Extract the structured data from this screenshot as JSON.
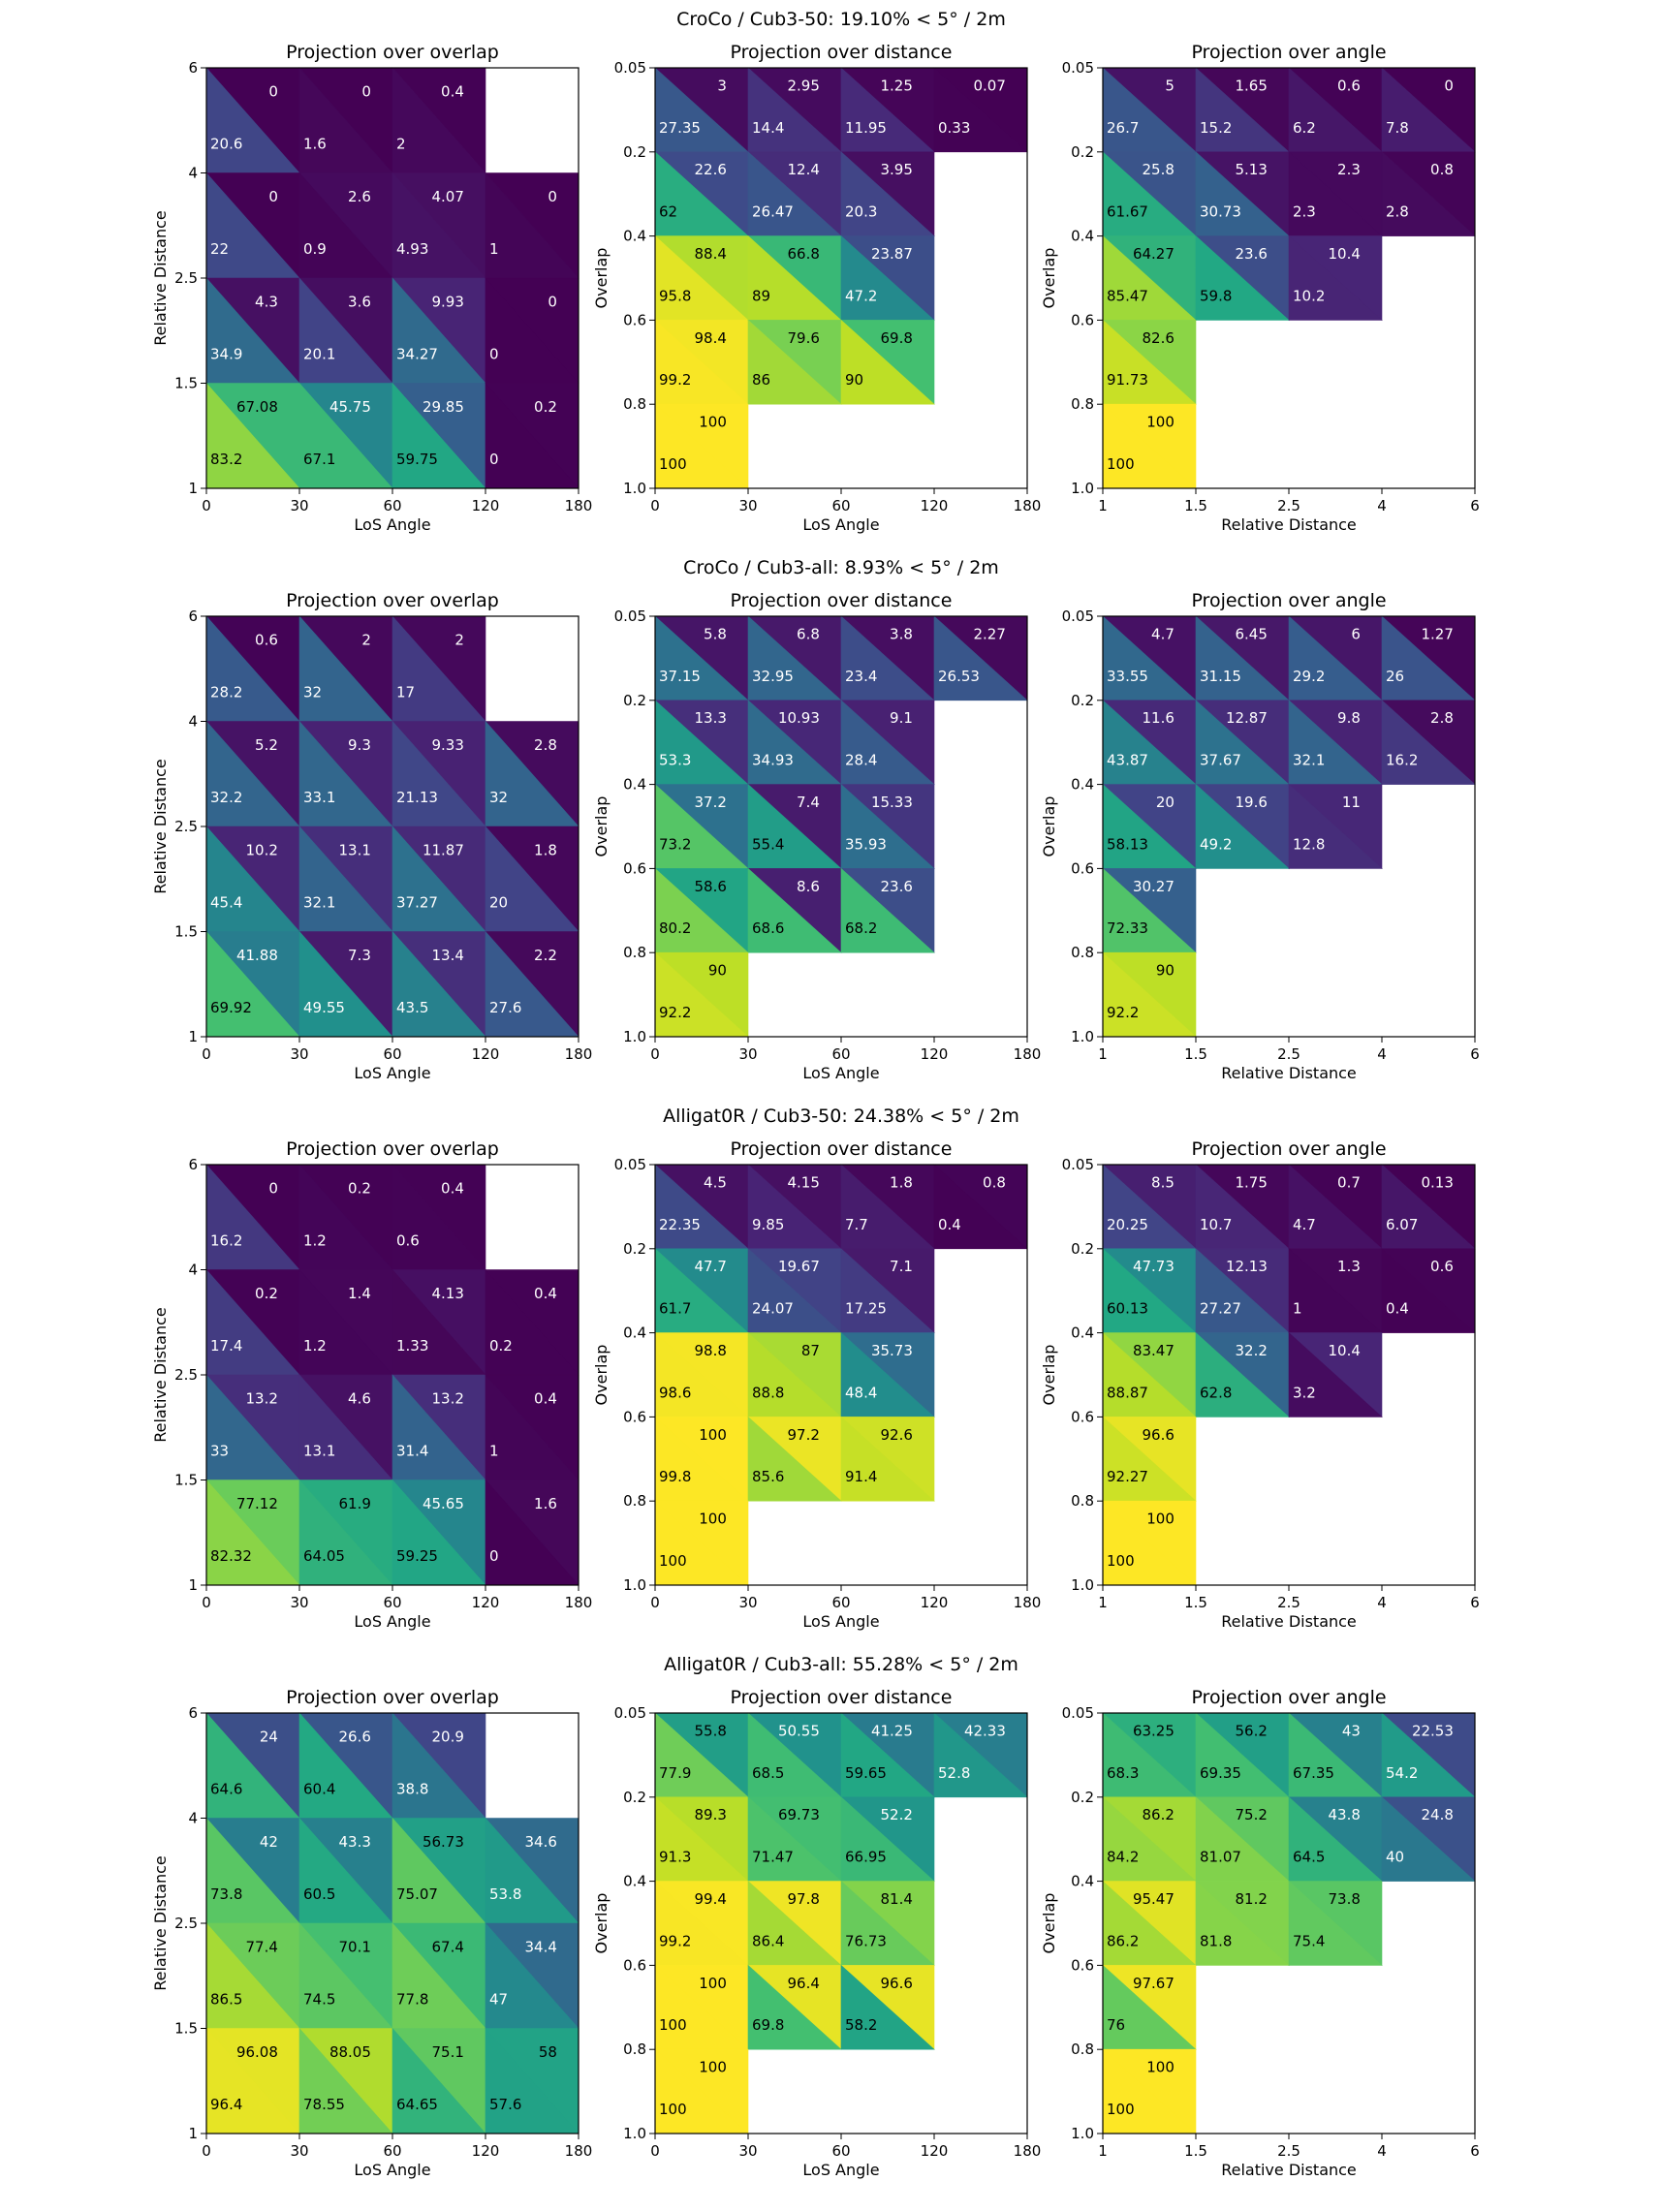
{
  "figure": {
    "panel_titles": [
      "Projection over overlap",
      "Projection over distance",
      "Projection over angle"
    ]
  },
  "axes": {
    "angle_ticks": [
      "0",
      "30",
      "60",
      "120",
      "180"
    ],
    "distance_ticks": [
      "1",
      "1.5",
      "2.5",
      "4",
      "6"
    ],
    "overlap_ticks": [
      "0.05",
      "0.2",
      "0.4",
      "0.6",
      "0.8",
      "1.0"
    ],
    "angle_label": "LoS Angle",
    "distance_label": "Relative Distance",
    "overlap_label": "Overlap"
  },
  "chart_data": [
    {
      "type": "heatmap",
      "title": "CroCo / Cub3-50: 19.10% < 5° / 2m",
      "colormap": "viridis",
      "value_range": [
        0,
        100
      ],
      "panels": [
        {
          "title": "Projection over overlap",
          "x_axis": "LoS Angle",
          "y_axis": "Relative Distance",
          "upper": [
            [
              0.0,
              0.0,
              0.4,
              null
            ],
            [
              0.0,
              2.6,
              4.07,
              0.0
            ],
            [
              4.3,
              3.6,
              9.93,
              0.0
            ],
            [
              67.08,
              45.75,
              29.85,
              0.2
            ]
          ],
          "lower": [
            [
              20.6,
              1.6,
              2.0,
              null
            ],
            [
              22.0,
              0.9,
              4.93,
              1.0
            ],
            [
              34.9,
              20.1,
              34.27,
              0.0
            ],
            [
              83.2,
              67.1,
              59.75,
              0.0
            ]
          ]
        },
        {
          "title": "Projection over distance",
          "x_axis": "LoS Angle",
          "y_axis": "Overlap",
          "upper": [
            [
              3.0,
              2.95,
              1.25,
              0.07
            ],
            [
              22.6,
              12.4,
              3.95,
              null
            ],
            [
              88.4,
              66.8,
              23.87,
              null
            ],
            [
              98.4,
              79.6,
              69.8,
              null
            ],
            [
              100.0,
              null,
              null,
              null
            ]
          ],
          "lower": [
            [
              27.35,
              14.4,
              11.95,
              0.33
            ],
            [
              62.0,
              26.47,
              20.3,
              null
            ],
            [
              95.8,
              89.0,
              47.2,
              null
            ],
            [
              99.2,
              86.0,
              90.0,
              null
            ],
            [
              100.0,
              null,
              null,
              null
            ]
          ]
        },
        {
          "title": "Projection over angle",
          "x_axis": "Relative Distance",
          "y_axis": "Overlap",
          "upper": [
            [
              5.0,
              1.65,
              0.6,
              0.0
            ],
            [
              25.8,
              5.13,
              2.3,
              0.8
            ],
            [
              64.27,
              23.6,
              10.4,
              null
            ],
            [
              82.6,
              null,
              null,
              null
            ],
            [
              100.0,
              null,
              null,
              null
            ]
          ],
          "lower": [
            [
              26.7,
              15.2,
              6.2,
              7.8
            ],
            [
              61.67,
              30.73,
              2.3,
              2.8
            ],
            [
              85.47,
              59.8,
              10.2,
              null
            ],
            [
              91.73,
              null,
              null,
              null
            ],
            [
              100.0,
              null,
              null,
              null
            ]
          ]
        }
      ]
    },
    {
      "type": "heatmap",
      "title": "CroCo / Cub3-all: 8.93% < 5° / 2m",
      "colormap": "viridis",
      "value_range": [
        0,
        100
      ],
      "panels": [
        {
          "title": "Projection over overlap",
          "x_axis": "LoS Angle",
          "y_axis": "Relative Distance",
          "upper": [
            [
              0.6,
              2.0,
              2.0,
              null
            ],
            [
              5.2,
              9.3,
              9.33,
              2.8
            ],
            [
              10.2,
              13.1,
              11.87,
              1.8
            ],
            [
              41.88,
              7.3,
              13.4,
              2.2
            ]
          ],
          "lower": [
            [
              28.2,
              32.0,
              17.0,
              null
            ],
            [
              32.2,
              33.1,
              21.13,
              32.0
            ],
            [
              45.4,
              32.1,
              37.27,
              20.0
            ],
            [
              69.92,
              49.55,
              43.5,
              27.6
            ]
          ]
        },
        {
          "title": "Projection over distance",
          "x_axis": "LoS Angle",
          "y_axis": "Overlap",
          "upper": [
            [
              5.8,
              6.8,
              3.8,
              2.27
            ],
            [
              13.3,
              10.93,
              9.1,
              null
            ],
            [
              37.2,
              7.4,
              15.33,
              null
            ],
            [
              58.6,
              8.6,
              23.6,
              null
            ],
            [
              90.0,
              null,
              null,
              null
            ]
          ],
          "lower": [
            [
              37.15,
              32.95,
              23.4,
              26.53
            ],
            [
              53.3,
              34.93,
              28.4,
              null
            ],
            [
              73.2,
              55.4,
              35.93,
              null
            ],
            [
              80.2,
              68.6,
              68.2,
              null
            ],
            [
              92.2,
              null,
              null,
              null
            ]
          ]
        },
        {
          "title": "Projection over angle",
          "x_axis": "Relative Distance",
          "y_axis": "Overlap",
          "upper": [
            [
              4.7,
              6.45,
              6.0,
              1.27
            ],
            [
              11.6,
              12.87,
              9.8,
              2.8
            ],
            [
              20.0,
              19.6,
              11.0,
              null
            ],
            [
              30.27,
              null,
              null,
              null
            ],
            [
              90.0,
              null,
              null,
              null
            ]
          ],
          "lower": [
            [
              33.55,
              31.15,
              29.2,
              26.0
            ],
            [
              43.87,
              37.67,
              32.1,
              16.2
            ],
            [
              58.13,
              49.2,
              12.8,
              null
            ],
            [
              72.33,
              null,
              null,
              null
            ],
            [
              92.2,
              null,
              null,
              null
            ]
          ]
        }
      ]
    },
    {
      "type": "heatmap",
      "title": "Alligat0R / Cub3-50: 24.38% < 5° / 2m",
      "colormap": "viridis",
      "value_range": [
        0,
        100
      ],
      "panels": [
        {
          "title": "Projection over overlap",
          "x_axis": "LoS Angle",
          "y_axis": "Relative Distance",
          "upper": [
            [
              0.0,
              0.2,
              0.4,
              null
            ],
            [
              0.2,
              1.4,
              4.13,
              0.4
            ],
            [
              13.2,
              4.6,
              13.2,
              0.4
            ],
            [
              77.12,
              61.9,
              45.65,
              1.6
            ]
          ],
          "lower": [
            [
              16.2,
              1.2,
              0.6,
              null
            ],
            [
              17.4,
              1.2,
              1.33,
              0.2
            ],
            [
              33.0,
              13.1,
              31.4,
              1.0
            ],
            [
              82.32,
              64.05,
              59.25,
              0.0
            ]
          ]
        },
        {
          "title": "Projection over distance",
          "x_axis": "LoS Angle",
          "y_axis": "Overlap",
          "upper": [
            [
              4.5,
              4.15,
              1.8,
              0.8
            ],
            [
              47.7,
              19.67,
              7.1,
              null
            ],
            [
              98.8,
              87.0,
              35.73,
              null
            ],
            [
              100.0,
              97.2,
              92.6,
              null
            ],
            [
              100.0,
              null,
              null,
              null
            ]
          ],
          "lower": [
            [
              22.35,
              9.85,
              7.7,
              0.4
            ],
            [
              61.7,
              24.07,
              17.25,
              null
            ],
            [
              98.6,
              88.8,
              48.4,
              null
            ],
            [
              99.8,
              85.6,
              91.4,
              null
            ],
            [
              100.0,
              null,
              null,
              null
            ]
          ]
        },
        {
          "title": "Projection over angle",
          "x_axis": "Relative Distance",
          "y_axis": "Overlap",
          "upper": [
            [
              8.5,
              1.75,
              0.7,
              0.13
            ],
            [
              47.73,
              12.13,
              1.3,
              0.6
            ],
            [
              83.47,
              32.2,
              10.4,
              null
            ],
            [
              96.6,
              null,
              null,
              null
            ],
            [
              100.0,
              null,
              null,
              null
            ]
          ],
          "lower": [
            [
              20.25,
              10.7,
              4.7,
              6.07
            ],
            [
              60.13,
              27.27,
              1.0,
              0.4
            ],
            [
              88.87,
              62.8,
              3.2,
              null
            ],
            [
              92.27,
              null,
              null,
              null
            ],
            [
              100.0,
              null,
              null,
              null
            ]
          ]
        }
      ]
    },
    {
      "type": "heatmap",
      "title": "Alligat0R / Cub3-all: 55.28% < 5° / 2m",
      "colormap": "viridis",
      "value_range": [
        0,
        100
      ],
      "panels": [
        {
          "title": "Projection over overlap",
          "x_axis": "LoS Angle",
          "y_axis": "Relative Distance",
          "upper": [
            [
              24.0,
              26.6,
              20.9,
              null
            ],
            [
              42.0,
              43.3,
              56.73,
              34.6
            ],
            [
              77.4,
              70.1,
              67.4,
              34.4
            ],
            [
              96.08,
              88.05,
              75.1,
              58.0
            ]
          ],
          "lower": [
            [
              64.6,
              60.4,
              38.8,
              null
            ],
            [
              73.8,
              60.5,
              75.07,
              53.8
            ],
            [
              86.5,
              74.5,
              77.8,
              47.0
            ],
            [
              96.4,
              78.55,
              64.65,
              57.6
            ]
          ]
        },
        {
          "title": "Projection over distance",
          "x_axis": "LoS Angle",
          "y_axis": "Overlap",
          "upper": [
            [
              55.8,
              50.55,
              41.25,
              42.33
            ],
            [
              89.3,
              69.73,
              52.2,
              null
            ],
            [
              99.4,
              97.8,
              81.4,
              null
            ],
            [
              100.0,
              96.4,
              96.6,
              null
            ],
            [
              100.0,
              null,
              null,
              null
            ]
          ],
          "lower": [
            [
              77.9,
              68.5,
              59.65,
              52.8
            ],
            [
              91.3,
              71.47,
              66.95,
              null
            ],
            [
              99.2,
              86.4,
              76.73,
              null
            ],
            [
              100.0,
              69.8,
              58.2,
              null
            ],
            [
              100.0,
              null,
              null,
              null
            ]
          ]
        },
        {
          "title": "Projection over angle",
          "x_axis": "Relative Distance",
          "y_axis": "Overlap",
          "upper": [
            [
              63.25,
              56.2,
              43.0,
              22.53
            ],
            [
              86.2,
              75.2,
              43.8,
              24.8
            ],
            [
              95.47,
              81.2,
              73.8,
              null
            ],
            [
              97.67,
              null,
              null,
              null
            ],
            [
              100.0,
              null,
              null,
              null
            ]
          ],
          "lower": [
            [
              68.3,
              69.35,
              67.35,
              54.2
            ],
            [
              84.2,
              81.07,
              64.5,
              40.0
            ],
            [
              86.2,
              81.8,
              75.4,
              null
            ],
            [
              76.0,
              null,
              null,
              null
            ],
            [
              100.0,
              null,
              null,
              null
            ]
          ]
        }
      ]
    }
  ]
}
